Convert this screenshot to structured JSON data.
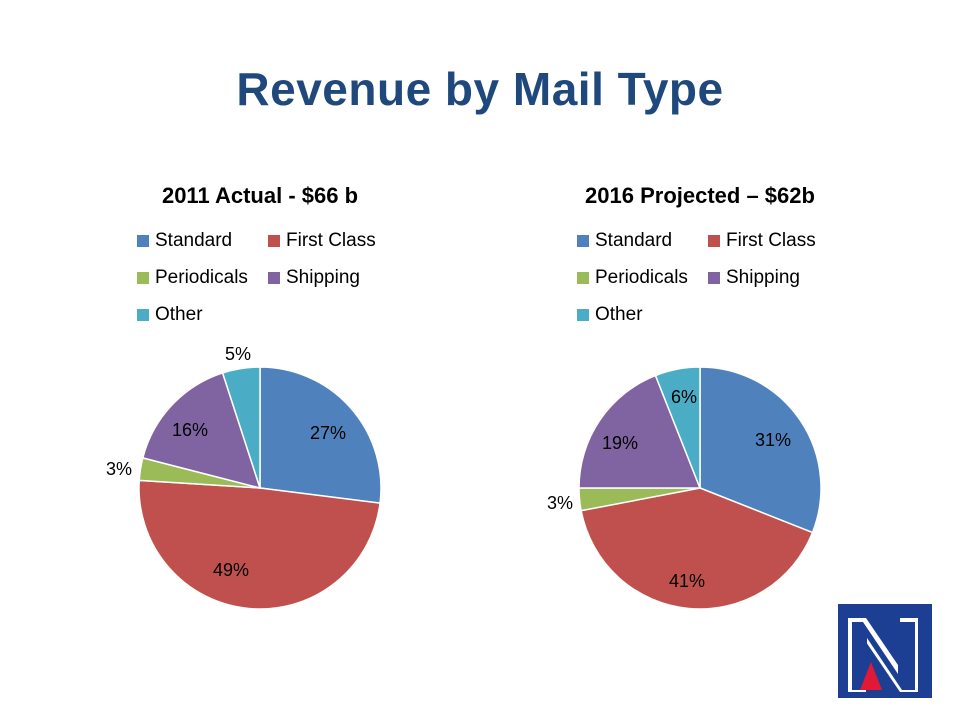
{
  "page_title": "Revenue by Mail Type",
  "colors": {
    "Standard": "#4F81BD",
    "First Class": "#C0504D",
    "Periodicals": "#9BBB59",
    "Shipping": "#8064A2",
    "Other": "#4BACC6",
    "title": "#1F497D"
  },
  "legend_labels": [
    "Standard",
    "First Class",
    "Periodicals",
    "Shipping",
    "Other"
  ],
  "chart_data": [
    {
      "type": "pie",
      "title": "2011 Actual - $66 b",
      "categories": [
        "Standard",
        "First Class",
        "Periodicals",
        "Shipping",
        "Other"
      ],
      "values": [
        27,
        49,
        3,
        16,
        5
      ],
      "labels": [
        "27%",
        "49%",
        "3%",
        "16%",
        "5%"
      ],
      "legend_position": "top"
    },
    {
      "type": "pie",
      "title": "2016 Projected – $62b",
      "categories": [
        "Standard",
        "First Class",
        "Periodicals",
        "Shipping",
        "Other"
      ],
      "values": [
        31,
        41,
        3,
        19,
        6
      ],
      "labels": [
        "31%",
        "41%",
        "3%",
        "19%",
        "6%"
      ],
      "legend_position": "top"
    }
  ],
  "logo": {
    "icon": "usps-logo-icon"
  }
}
